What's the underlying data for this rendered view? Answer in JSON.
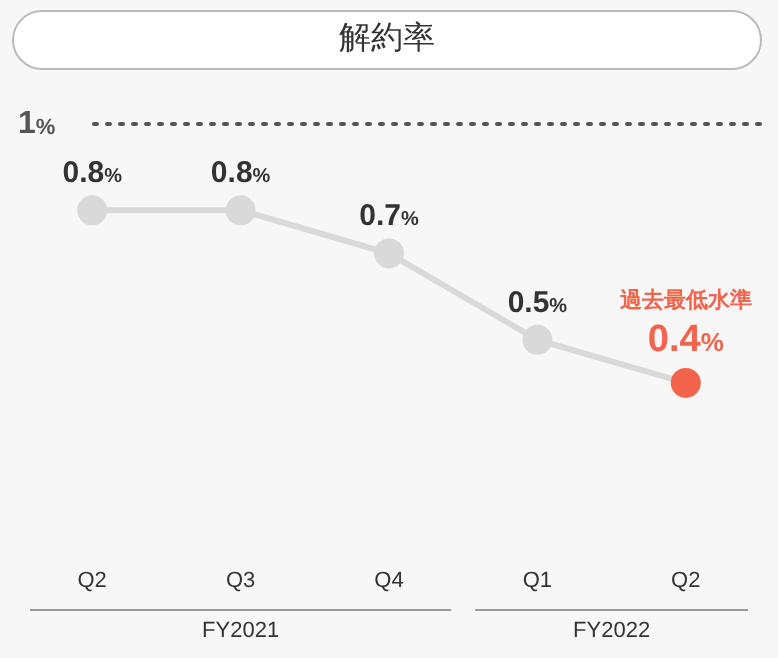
{
  "chart_data": {
    "type": "line",
    "title": "解約率",
    "categories": [
      "Q2",
      "Q3",
      "Q4",
      "Q1",
      "Q2"
    ],
    "series": [
      {
        "color": "#d9d9d9",
        "colors": [
          "#d9d9d9",
          "#d9d9d9",
          "#d9d9d9",
          "#d9d9d9",
          "#f2654c"
        ],
        "values": [
          0.8,
          0.8,
          0.7,
          0.5,
          0.4
        ],
        "value_labels": [
          "0.8%",
          "0.8%",
          "0.7%",
          "0.5%",
          "0.4%"
        ]
      }
    ],
    "tick_labels": "x",
    "grid": false,
    "legend": false,
    "marker": "circle",
    "line_style": "solid",
    "ref_lines": [
      {
        "axis": "y",
        "value": 1,
        "label": "1%",
        "color": "#555555",
        "line_style": "dotted"
      }
    ],
    "annotations": [
      "過去最低水準",
      "FY2021",
      "FY2022"
    ]
  }
}
